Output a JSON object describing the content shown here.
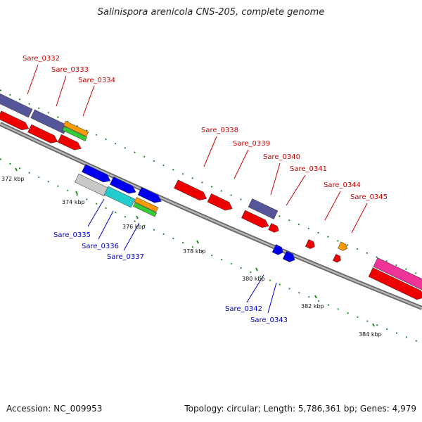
{
  "title": "Salinispora arenicola CNS-205, complete genome",
  "footer": {
    "accession": "Accession: NC_009953",
    "stats": "Topology: circular; Length: 5,786,361 bp; Genes: 4,979"
  },
  "colors": {
    "forward_label": "#cc0000",
    "reverse_label": "#0000cc",
    "backbone": "#808080",
    "tick_dot": "#2a8a2a",
    "red": "#ee0000",
    "blue": "#0000ee",
    "purple": "#555599",
    "orange": "#ff9900",
    "green": "#33cc33",
    "cyan": "#22cccc",
    "gray": "#c8c8c8",
    "pink": "#ee3399"
  },
  "ticks": [
    "372 kbp",
    "374 kbp",
    "376 kbp",
    "378 kbp",
    "380 kbp",
    "382 kbp",
    "384 kbp"
  ],
  "genes": [
    {
      "name": "Sare_0332",
      "strand": "forward"
    },
    {
      "name": "Sare_0333",
      "strand": "forward"
    },
    {
      "name": "Sare_0334",
      "strand": "forward"
    },
    {
      "name": "Sare_0335",
      "strand": "reverse"
    },
    {
      "name": "Sare_0336",
      "strand": "reverse"
    },
    {
      "name": "Sare_0337",
      "strand": "reverse"
    },
    {
      "name": "Sare_0338",
      "strand": "forward"
    },
    {
      "name": "Sare_0339",
      "strand": "forward"
    },
    {
      "name": "Sare_0340",
      "strand": "forward"
    },
    {
      "name": "Sare_0341",
      "strand": "forward"
    },
    {
      "name": "Sare_0342",
      "strand": "reverse"
    },
    {
      "name": "Sare_0343",
      "strand": "reverse"
    },
    {
      "name": "Sare_0344",
      "strand": "forward"
    },
    {
      "name": "Sare_0345",
      "strand": "forward"
    }
  ]
}
